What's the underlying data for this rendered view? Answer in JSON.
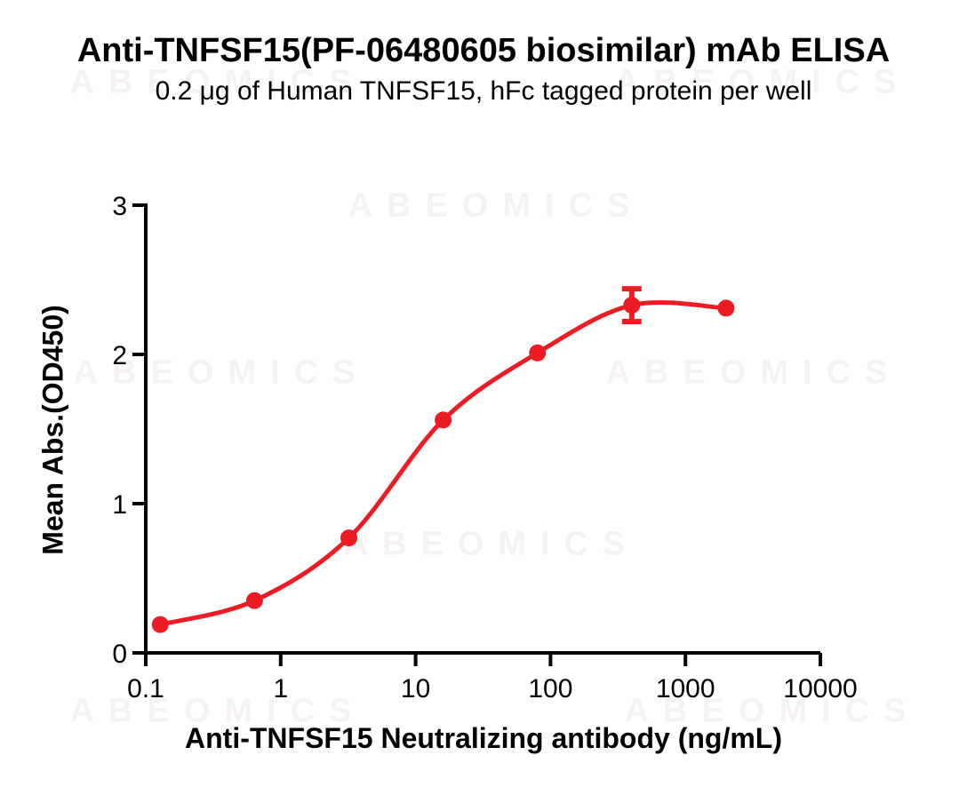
{
  "watermark": {
    "text": "ABEOMICS",
    "color": "#F6F2F2"
  },
  "chart_data": {
    "type": "line",
    "title": "Anti-TNFSF15(PF-06480605 biosimilar) mAb ELISA",
    "subtitle": "0.2 μg of Human TNFSF15, hFc tagged protein per well",
    "xlabel": "Anti-TNFSF15 Neutralizing antibody (ng/mL)",
    "ylabel": "Mean Abs.(OD450)",
    "x_scale": "log10",
    "xlim": [
      0.1,
      10000
    ],
    "ylim": [
      0,
      3
    ],
    "x_tick_labels": [
      "0.1",
      "1",
      "10",
      "100",
      "1000",
      "10000"
    ],
    "x_tick_values": [
      0.1,
      1,
      10,
      100,
      1000,
      10000
    ],
    "y_tick_labels": [
      "0",
      "1",
      "2",
      "3"
    ],
    "y_tick_values": [
      0,
      1,
      2,
      3
    ],
    "grid": false,
    "legend": false,
    "axis_color": "#000000",
    "series": [
      {
        "marker": "circle",
        "color": "#EC1C24",
        "x": [
          0.128,
          0.64,
          3.2,
          16,
          80,
          400,
          2000
        ],
        "y": [
          0.19,
          0.35,
          0.77,
          1.56,
          2.01,
          2.33,
          2.31
        ],
        "y_err": [
          0,
          0,
          0,
          0,
          0,
          0.11,
          0
        ]
      }
    ]
  }
}
